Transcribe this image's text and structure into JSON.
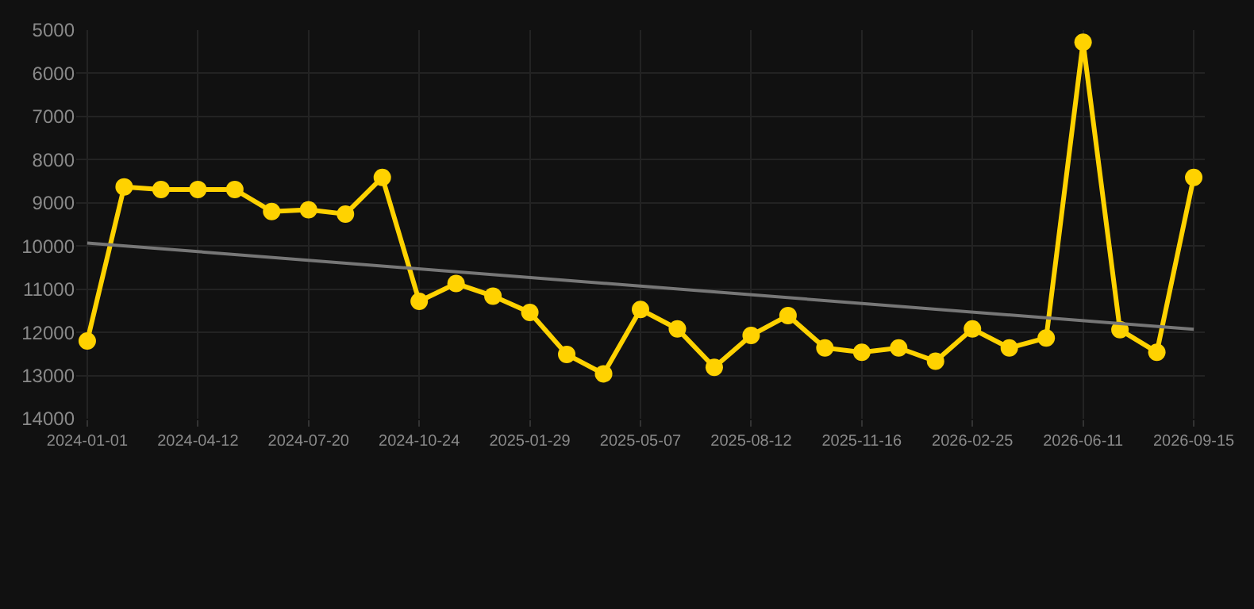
{
  "chart_data": {
    "type": "line",
    "categories": [
      "2024-01-01",
      null,
      null,
      "2024-04-12",
      null,
      null,
      "2024-07-20",
      null,
      null,
      "2024-10-24",
      null,
      null,
      "2025-01-29",
      null,
      null,
      "2025-05-07",
      null,
      null,
      "2025-08-12",
      null,
      null,
      "2025-11-16",
      null,
      null,
      "2026-02-25",
      null,
      null,
      "2026-06-11",
      null,
      null,
      "2026-09-15"
    ],
    "series": [
      {
        "color": "#ffd200",
        "marker": "circle",
        "values": [
          12200,
          8630,
          8690,
          8690,
          8690,
          9200,
          9160,
          9260,
          8410,
          11280,
          10870,
          11160,
          11540,
          12510,
          12960,
          11470,
          11920,
          12810,
          12070,
          11610,
          12360,
          12460,
          12360,
          12670,
          11920,
          12360,
          12130,
          5280,
          11940,
          12460,
          8410
        ]
      },
      {
        "type": "line",
        "color": "#777777",
        "marker": "none",
        "values": [
          9930,
          null,
          null,
          null,
          null,
          null,
          null,
          null,
          null,
          null,
          null,
          null,
          null,
          null,
          null,
          null,
          null,
          null,
          null,
          null,
          null,
          null,
          null,
          null,
          null,
          null,
          null,
          null,
          null,
          null,
          11930
        ]
      }
    ],
    "ylim": [
      14000,
      5000
    ],
    "yticks": [
      5000,
      6000,
      7000,
      8000,
      9000,
      10000,
      11000,
      12000,
      13000,
      14000
    ],
    "grid": true
  }
}
